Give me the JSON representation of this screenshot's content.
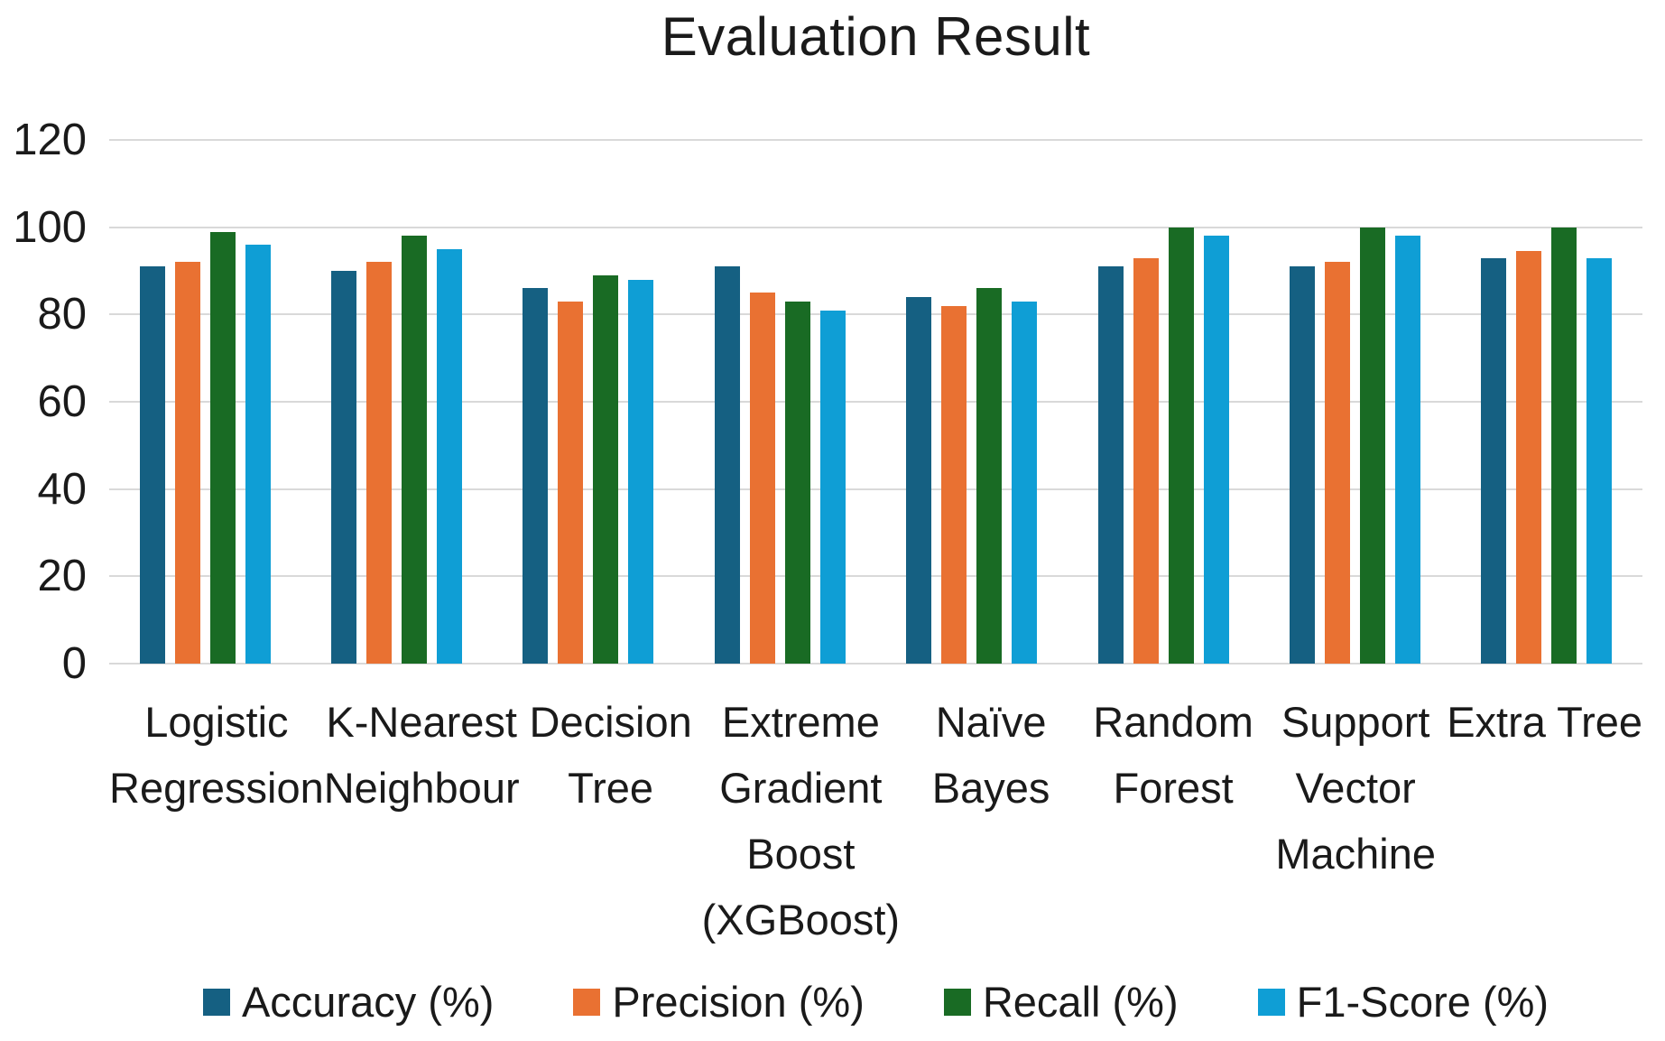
{
  "title": "Evaluation Result",
  "chart_data": {
    "type": "bar",
    "title": "Evaluation Result",
    "xlabel": "",
    "ylabel": "",
    "ylim": [
      0,
      120
    ],
    "ytick_step": 20,
    "ytick_labels": [
      "120",
      "100",
      "80",
      "60",
      "40",
      "20",
      "0"
    ],
    "grid": true,
    "legend_position": "bottom",
    "background_color": "#ffffff",
    "gridline_color": "#d9d9d9",
    "categories": [
      "Logistic Regression",
      "K-Nearest Neighbour",
      "Decision Tree",
      "Extreme Gradient Boost (XGBoost)",
      "Naïve Bayes",
      "Random Forest",
      "Support Vector Machine",
      "Extra Tree"
    ],
    "category_label_lines": [
      [
        "Logistic",
        "Regression"
      ],
      [
        "K-Nearest",
        "Neighbour"
      ],
      [
        "Decision",
        "Tree"
      ],
      [
        "Extreme",
        "Gradient",
        "Boost",
        "(XGBoost)"
      ],
      [
        "Naïve",
        "Bayes"
      ],
      [
        "Random",
        "Forest"
      ],
      [
        "Support",
        "Vector",
        "Machine"
      ],
      [
        "Extra Tree"
      ]
    ],
    "series": [
      {
        "name": "Accuracy (%)",
        "color": "#156082",
        "values": [
          91,
          90,
          86,
          91,
          84,
          91,
          91,
          93
        ]
      },
      {
        "name": "Precision (%)",
        "color": "#e97132",
        "values": [
          92,
          92,
          83,
          85,
          82,
          93,
          92,
          94.5
        ]
      },
      {
        "name": "Recall (%)",
        "color": "#196b24",
        "values": [
          99,
          98,
          89,
          83,
          86,
          100,
          100,
          100
        ]
      },
      {
        "name": "F1-Score (%)",
        "color": "#0f9ed5",
        "values": [
          96,
          95,
          88,
          81,
          83,
          98,
          98,
          93
        ]
      }
    ]
  }
}
